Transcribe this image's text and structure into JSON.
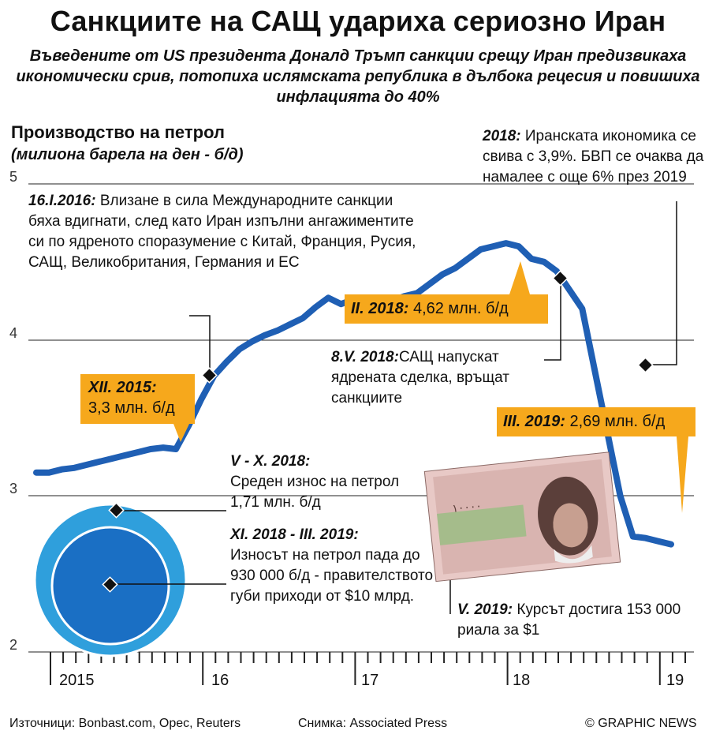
{
  "header": {
    "title": "Санкциите на САЩ удариха сериозно Иран",
    "subtitle": "Въведените от US президента Доналд Тръмп санкции срещу Иран предизвикаха икономически срив, потопиха ислямската република в дълбока рецесия и повишиха инфлацията до 40%"
  },
  "chart_data": {
    "type": "line",
    "title": "Производство на петрол",
    "ylabel": "(милиона барела на ден - б/д)",
    "ylim": [
      2,
      5
    ],
    "yticks": [
      "5",
      "4",
      "3",
      "2"
    ],
    "xticks": [
      "2015",
      "16",
      "17",
      "18",
      "19"
    ],
    "grid": true,
    "series": [
      {
        "color": "#1f5fb4",
        "x": [
          "I.2015",
          "II.2015",
          "III.2015",
          "IV.2015",
          "V.2015",
          "VI.2015",
          "VII.2015",
          "VIII.2015",
          "IX.2015",
          "X.2015",
          "XI.2015",
          "XII.2015",
          "I.2016",
          "II.2016",
          "III.2016",
          "IV.2016",
          "V.2016",
          "VI.2016",
          "VII.2016",
          "VIII.2016",
          "IX.2016",
          "X.2016",
          "XI.2016",
          "XII.2016",
          "I.2017",
          "II.2017",
          "III.2017",
          "IV.2017",
          "V.2017",
          "VI.2017",
          "VII.2017",
          "VIII.2017",
          "IX.2017",
          "X.2017",
          "XI.2017",
          "XII.2017",
          "I.2018",
          "II.2018",
          "III.2018",
          "IV.2018",
          "V.2018",
          "VI.2018",
          "VII.2018",
          "VIII.2018",
          "IX.2018",
          "X.2018",
          "XI.2018",
          "XII.2018",
          "I.2019",
          "II.2019",
          "III.2019"
        ],
        "values": [
          3.15,
          3.15,
          3.17,
          3.18,
          3.2,
          3.22,
          3.24,
          3.26,
          3.28,
          3.3,
          3.31,
          3.3,
          3.45,
          3.62,
          3.77,
          3.86,
          3.94,
          3.99,
          4.03,
          4.06,
          4.1,
          4.14,
          4.21,
          4.27,
          4.23,
          4.26,
          4.22,
          4.27,
          4.25,
          4.28,
          4.3,
          4.36,
          4.42,
          4.46,
          4.52,
          4.58,
          4.6,
          4.62,
          4.6,
          4.52,
          4.5,
          4.44,
          4.32,
          4.2,
          3.8,
          3.4,
          3.0,
          2.74,
          2.73,
          2.71,
          2.69
        ]
      }
    ]
  },
  "annotations": {
    "dec2015": {
      "date": "XII. 2015:",
      "value": "3,3 млн. б/д"
    },
    "jan2016": {
      "date": "16.I.2016:",
      "text": "Влизане в сила Международните санкции бяха вдигнати, след като Иран изпълни ангажиментите си по ядреното споразумение с Китай, Франция, Русия, САЩ, Великобритания, Германия и ЕС"
    },
    "feb2018": {
      "date": "II. 2018:",
      "value": "4,62 млн. б/д"
    },
    "may2018": {
      "date": "8.V. 2018:",
      "text": "САЩ напускат ядрената сделка, връщат санкциите"
    },
    "y2018": {
      "date": "2018:",
      "text": "Иранската икономика се свива с 3,9%. БВП се очаква да намалее с още 6% през 2019"
    },
    "mar2019": {
      "date": "III. 2019:",
      "value": "2,69 млн. б/д"
    },
    "exports1": {
      "date": "V - X. 2018:",
      "text": "Среден износ на петрол 1,71 млн. б/д",
      "value": 1.71
    },
    "exports2": {
      "date": "XI. 2018 - III. 2019:",
      "text": "Износът на петрол пада до 930 000 б/д - правителството губи приходи от $10 млрд.",
      "value": 0.93
    },
    "may2019": {
      "date": "V. 2019:",
      "text": "Курсът достига 153 000 риала за $1"
    }
  },
  "colors": {
    "line": "#1f5fb4",
    "label_bg": "#f6a81c",
    "circle_outer": "#2f9fdc",
    "circle_inner": "#1a6fc4"
  },
  "footer": {
    "sources": "Източници:  Bonbast.com, Opec, Reuters",
    "photo": "Снимка: Associated Press",
    "copyright": "© GRAPHIC NEWS"
  }
}
